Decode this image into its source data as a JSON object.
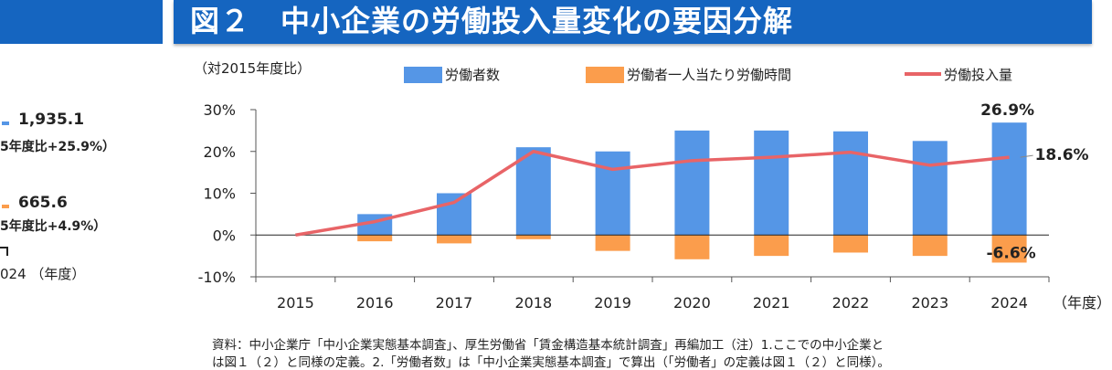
{
  "title": "図２　中小企業の労働投入量変化の要因分解",
  "left_panel": {
    "value1": "1,935.1",
    "sub1": "5年度比+25.9%）",
    "value2": "665.6",
    "sub2": "5年度比+4.9%）",
    "axis_label": "024 （年度）"
  },
  "colors": {
    "workers": "#5596e6",
    "hours": "#fb9d4c",
    "input": "#e86467",
    "banner": "#1565c0"
  },
  "chart_data": {
    "type": "bar",
    "unit_label": "（対2015年度比）",
    "x_unit": "（年度）",
    "categories": [
      "2015",
      "2016",
      "2017",
      "2018",
      "2019",
      "2020",
      "2021",
      "2022",
      "2023",
      "2024"
    ],
    "series": [
      {
        "name": "労働者数",
        "kind": "bar",
        "values": [
          0,
          5.0,
          10.0,
          21.0,
          20.0,
          25.0,
          25.0,
          24.8,
          22.5,
          26.9
        ]
      },
      {
        "name": "労働者一人当たり労働時間",
        "kind": "bar",
        "values": [
          0,
          -1.5,
          -2.0,
          -1.0,
          -3.8,
          -5.8,
          -5.0,
          -4.2,
          -5.0,
          -6.6
        ]
      },
      {
        "name": "労働投入量",
        "kind": "line",
        "values": [
          0,
          3.2,
          7.8,
          20.0,
          15.7,
          17.8,
          18.6,
          19.8,
          16.7,
          18.6
        ]
      }
    ],
    "ylim": [
      -10,
      30
    ],
    "yticks": [
      "-10%",
      "0%",
      "10%",
      "20%",
      "30%"
    ],
    "annotations": [
      "26.9%",
      "18.6%",
      "-6.6%"
    ]
  },
  "notes": [
    "資料：中小企業庁「中小企業実態基本調査」、厚生労働省「賃金構造基本統計調査」再編加工（注）1.ここでの中小企業と",
    "は図１（２）と同様の定義。2.「労働者数」は「中小企業実態基本調査」で算出（「労働者」の定義は図１（２）と同様）。"
  ]
}
